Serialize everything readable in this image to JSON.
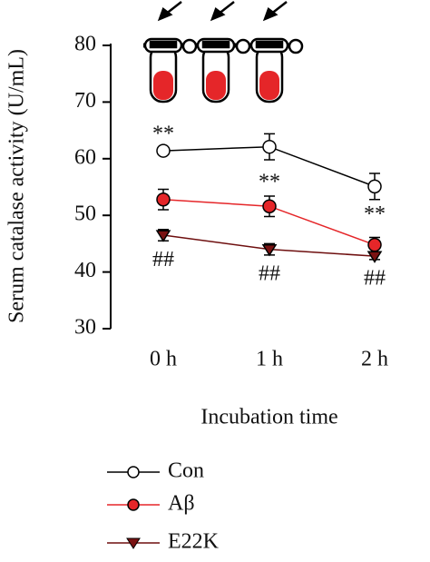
{
  "chart_data": {
    "type": "line",
    "y_label": "Serum catalase activity (U/mL)",
    "x_label": "Incubation time",
    "categories": [
      "0 h",
      "1 h",
      "2 h"
    ],
    "ylim": [
      30,
      80
    ],
    "yticks": [
      30,
      40,
      50,
      60,
      70,
      80
    ],
    "series": [
      {
        "name": "Con",
        "color": "#000000",
        "marker_fill": "#ffffff",
        "marker": "circle",
        "values": [
          61.4,
          62.1,
          55.1
        ],
        "errors": [
          0.5,
          2.3,
          2.3
        ]
      },
      {
        "name": "Aβ",
        "color": "#e52629",
        "marker_fill": "#e52629",
        "marker": "circle",
        "values": [
          52.8,
          51.6,
          44.8
        ],
        "errors": [
          1.8,
          1.8,
          1.3
        ]
      },
      {
        "name": "E22K",
        "color": "#6e0f0f",
        "marker_fill": "#7a1212",
        "marker": "triangle",
        "values": [
          46.5,
          44.0,
          42.8
        ],
        "errors": [
          1.0,
          1.0,
          0.6
        ]
      }
    ],
    "annotations": [
      {
        "text": "**",
        "category": "0 h",
        "series": "Con",
        "position": "above"
      },
      {
        "text": "**",
        "category": "1 h",
        "series": "Aβ",
        "position": "above"
      },
      {
        "text": "**",
        "category": "2 h",
        "series": "Con",
        "position": "below"
      },
      {
        "text": "##",
        "category": "0 h",
        "series": "E22K",
        "position": "below"
      },
      {
        "text": "##",
        "category": "1 h",
        "series": "E22K",
        "position": "below"
      },
      {
        "text": "##",
        "category": "2 h",
        "series": "E22K",
        "position": "below"
      }
    ]
  }
}
